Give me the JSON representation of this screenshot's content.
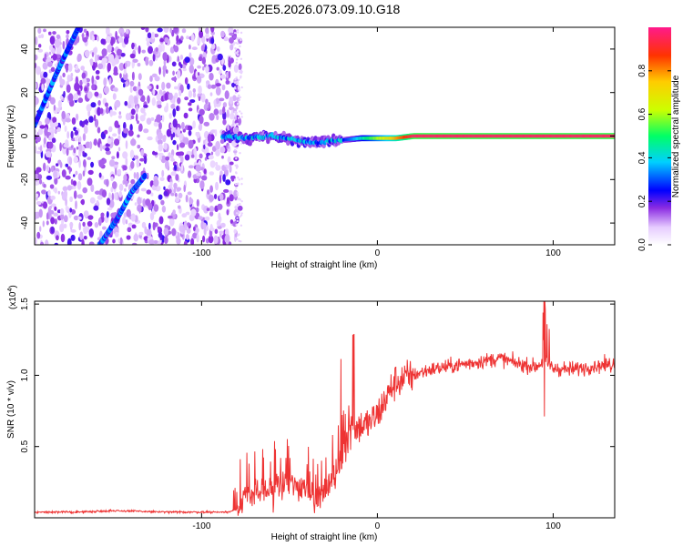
{
  "title": "C2E5.2026.073.09.10.G18",
  "chart_data": [
    {
      "type": "heatmap",
      "xlabel": "Height of straight line (km)",
      "ylabel": "Frequency (Hz)",
      "xlim": [
        -195,
        135
      ],
      "ylim": [
        -50,
        50
      ],
      "xticks": [
        -100,
        0,
        100
      ],
      "yticks": [
        -40,
        -20,
        0,
        20,
        40
      ],
      "xtick_labels": [
        "-100",
        "0",
        "100"
      ],
      "ytick_labels": [
        "-40",
        "-20",
        "0",
        "20",
        "40"
      ],
      "colorbar": {
        "label": "Normalized spectral amplitude",
        "range": [
          0,
          1
        ],
        "ticks": [
          0.0,
          0.2,
          0.4,
          0.6,
          0.8
        ],
        "tick_labels": [
          "0.0",
          "0.2",
          "0.4",
          "0.6",
          "0.8"
        ]
      },
      "features": [
        {
          "name": "noise-field",
          "x_range": [
            -195,
            -78
          ],
          "y_range": [
            -50,
            50
          ],
          "amplitude": 0.12
        },
        {
          "name": "diagonal-track-upper",
          "points": [
            [
              -195,
              5
            ],
            [
              -183,
              28
            ],
            [
              -176,
              40
            ],
            [
              -170,
              50
            ]
          ],
          "amplitude": 0.25
        },
        {
          "name": "diagonal-track-lower",
          "points": [
            [
              -158,
              -50
            ],
            [
              -148,
              -38
            ],
            [
              -140,
              -26
            ],
            [
              -132,
              -18
            ]
          ],
          "amplitude": 0.25
        },
        {
          "name": "carrier-line",
          "points": [
            [
              -88,
              0
            ],
            [
              -75,
              -1
            ],
            [
              -60,
              0
            ],
            [
              -45,
              -2
            ],
            [
              -35,
              -3
            ],
            [
              -22,
              -2
            ],
            [
              -10,
              -1
            ],
            [
              0,
              -1
            ],
            [
              10,
              -1
            ],
            [
              20,
              0
            ],
            [
              135,
              0
            ]
          ],
          "amplitude_start": 0.25,
          "amplitude_end": 1.0
        }
      ]
    },
    {
      "type": "line",
      "xlabel": "Height of straight line (km)",
      "ylabel": "SNR (10 * v/v)",
      "scale_note": "(x10",
      "scale_exponent": "4",
      "scale_close": ")",
      "xlim": [
        -195,
        135
      ],
      "ylim": [
        0,
        1.52
      ],
      "xticks": [
        -100,
        0,
        100
      ],
      "yticks": [
        0.5,
        1.0,
        1.5
      ],
      "xtick_labels": [
        "-100",
        "0",
        "100"
      ],
      "ytick_labels": [
        "0.5",
        "1.0",
        "1.5"
      ],
      "color": "#ee3333",
      "x": [
        -195,
        -170,
        -150,
        -120,
        -100,
        -85,
        -80,
        -75,
        -70,
        -60,
        -50,
        -40,
        -35,
        -30,
        -25,
        -20,
        -17,
        -15,
        -10,
        -5,
        0,
        5,
        10,
        20,
        30,
        40,
        50,
        60,
        70,
        80,
        90,
        95,
        100,
        110,
        120,
        135
      ],
      "y": [
        0.04,
        0.04,
        0.05,
        0.04,
        0.04,
        0.04,
        0.06,
        0.14,
        0.17,
        0.19,
        0.24,
        0.2,
        0.15,
        0.18,
        0.28,
        0.38,
        0.6,
        0.62,
        0.64,
        0.66,
        0.72,
        0.84,
        0.95,
        1.0,
        1.04,
        1.06,
        1.08,
        1.1,
        1.12,
        1.08,
        1.06,
        1.1,
        1.05,
        1.04,
        1.06,
        1.08
      ]
    }
  ]
}
